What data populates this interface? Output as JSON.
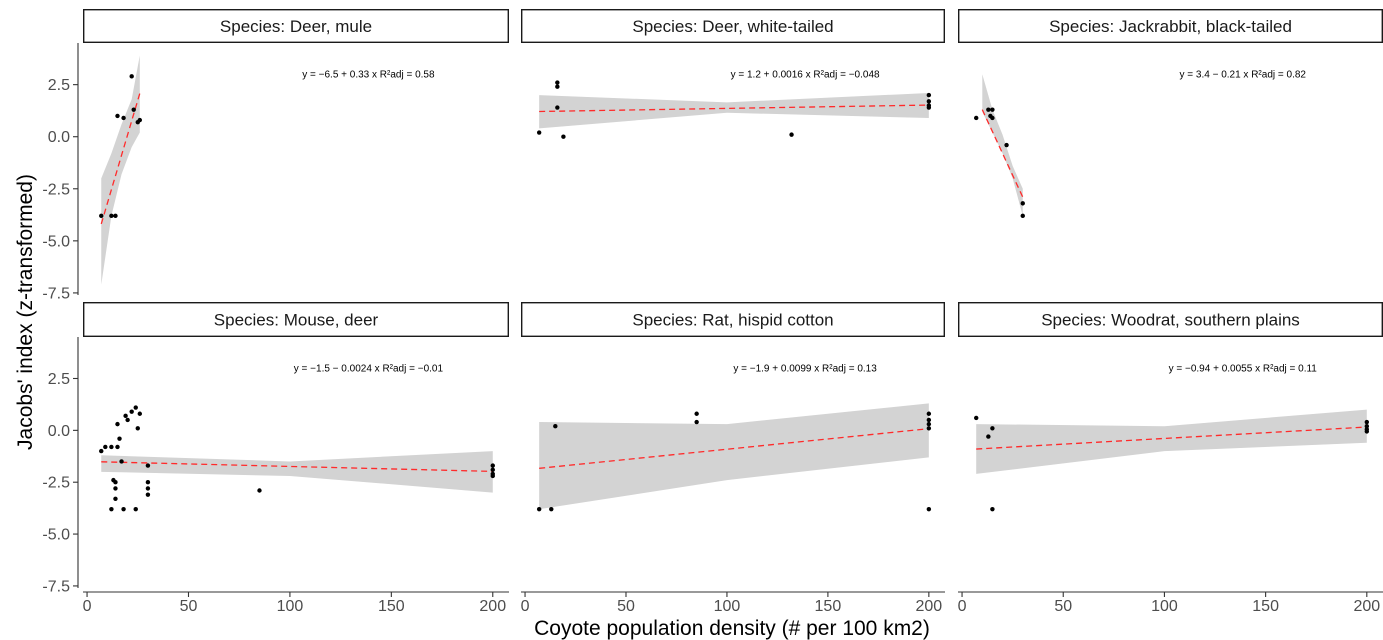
{
  "chart_data": {
    "type": "scatter",
    "xlabel": "Coyote population density (# per 100 km2)",
    "ylabel": "Jacobs' index (z-transformed)",
    "xlim": [
      -2,
      208
    ],
    "ylim": [
      -7.6,
      4.5
    ],
    "x_ticks": [
      0,
      50,
      100,
      150,
      200
    ],
    "x_tick_labels": [
      "0",
      "50",
      "100",
      "150",
      "200"
    ],
    "y_ticks": [
      2.5,
      0.0,
      -2.5,
      -5.0,
      -7.5
    ],
    "y_tick_labels": [
      "2.5",
      "0.0",
      "-2.5",
      "-5.0",
      "-7.5"
    ],
    "grid": false,
    "trend_color": "#ff2a2a",
    "band_color": "#d3d3d3",
    "point_color": "#000000",
    "panels": [
      {
        "strip": "Species: Deer, mule",
        "eq": "y = −6.5 + 0.33 x   R²adj = 0.58",
        "line": {
          "x_from": 7,
          "x_to": 26,
          "intercept": -6.5,
          "slope": 0.33
        },
        "band": {
          "x": [
            7,
            12,
            17,
            22,
            26
          ],
          "upper": [
            -2.0,
            -0.8,
            0.6,
            1.8,
            3.9
          ],
          "lower": [
            -7.1,
            -3.8,
            -1.8,
            -0.5,
            0.2
          ]
        },
        "points": [
          [
            7,
            -3.8
          ],
          [
            12,
            -3.8
          ],
          [
            14,
            -3.8
          ],
          [
            15,
            1.0
          ],
          [
            18,
            0.9
          ],
          [
            22,
            2.9
          ],
          [
            23,
            1.3
          ],
          [
            25,
            0.7
          ],
          [
            26,
            0.8
          ]
        ]
      },
      {
        "strip": "Species: Deer, white-tailed",
        "eq": "y = 1.2 + 0.0016 x   R²adj = −0.048",
        "line": {
          "x_from": 7,
          "x_to": 200,
          "intercept": 1.2,
          "slope": 0.0016
        },
        "band": {
          "x": [
            7,
            100,
            200
          ],
          "upper": [
            2.0,
            1.65,
            2.1
          ],
          "lower": [
            0.4,
            1.15,
            0.9
          ]
        },
        "points": [
          [
            7,
            0.2
          ],
          [
            16,
            2.6
          ],
          [
            16,
            2.4
          ],
          [
            16,
            1.4
          ],
          [
            19,
            0.0
          ],
          [
            132,
            0.1
          ],
          [
            200,
            2.0
          ],
          [
            200,
            1.7
          ],
          [
            200,
            1.5
          ],
          [
            200,
            1.4
          ]
        ]
      },
      {
        "strip": "Species: Jackrabbit, black-tailed",
        "eq": "y = 3.4 − 0.21 x   R²adj = 0.82",
        "line": {
          "x_from": 10,
          "x_to": 30,
          "intercept": 3.4,
          "slope": -0.21
        },
        "band": {
          "x": [
            10,
            15,
            20,
            25,
            30
          ],
          "upper": [
            3.0,
            1.3,
            0.1,
            -1.4,
            -2.5
          ],
          "lower": [
            1.2,
            0.2,
            -0.8,
            -2.0,
            -3.8
          ]
        },
        "points": [
          [
            7,
            0.9
          ],
          [
            13,
            1.3
          ],
          [
            14,
            1.0
          ],
          [
            15,
            0.9
          ],
          [
            15,
            1.3
          ],
          [
            22,
            -0.4
          ],
          [
            30,
            -3.2
          ],
          [
            30,
            -3.8
          ]
        ]
      },
      {
        "strip": "Species: Mouse, deer",
        "eq": "y = −1.5 − 0.0024 x   R²adj = −0.01",
        "line": {
          "x_from": 7,
          "x_to": 200,
          "intercept": -1.5,
          "slope": -0.0024
        },
        "band": {
          "x": [
            7,
            100,
            200
          ],
          "upper": [
            -1.2,
            -1.5,
            -1.0
          ],
          "lower": [
            -2.0,
            -2.2,
            -3.0
          ]
        },
        "points": [
          [
            7,
            -1.0
          ],
          [
            9,
            -0.8
          ],
          [
            12,
            -3.8
          ],
          [
            12,
            -0.8
          ],
          [
            13,
            -2.4
          ],
          [
            14,
            -2.5
          ],
          [
            14,
            -2.8
          ],
          [
            14,
            -3.3
          ],
          [
            15,
            0.3
          ],
          [
            15,
            -0.8
          ],
          [
            16,
            -0.4
          ],
          [
            17,
            -1.5
          ],
          [
            18,
            -3.8
          ],
          [
            19,
            0.7
          ],
          [
            20,
            0.5
          ],
          [
            22,
            0.9
          ],
          [
            24,
            -3.8
          ],
          [
            24,
            1.1
          ],
          [
            25,
            0.1
          ],
          [
            26,
            0.8
          ],
          [
            30,
            -1.7
          ],
          [
            30,
            -2.5
          ],
          [
            30,
            -2.8
          ],
          [
            30,
            -3.1
          ],
          [
            85,
            -2.9
          ],
          [
            200,
            -1.7
          ],
          [
            200,
            -1.9
          ],
          [
            200,
            -2.1
          ],
          [
            200,
            -2.2
          ]
        ]
      },
      {
        "strip": "Species: Rat, hispid cotton",
        "eq": "y = −1.9 + 0.0099 x   R²adj = 0.13",
        "line": {
          "x_from": 7,
          "x_to": 200,
          "intercept": -1.9,
          "slope": 0.0099
        },
        "band": {
          "x": [
            7,
            100,
            200
          ],
          "upper": [
            0.4,
            0.3,
            1.3
          ],
          "lower": [
            -3.8,
            -2.4,
            -1.3
          ]
        },
        "points": [
          [
            7,
            -3.8
          ],
          [
            13,
            -3.8
          ],
          [
            15,
            0.2
          ],
          [
            85,
            0.8
          ],
          [
            85,
            0.4
          ],
          [
            200,
            0.8
          ],
          [
            200,
            0.5
          ],
          [
            200,
            0.3
          ],
          [
            200,
            0.1
          ],
          [
            200,
            -3.8
          ]
        ]
      },
      {
        "strip": "Species: Woodrat, southern plains",
        "eq": "y = −0.94 + 0.0055 x   R²adj = 0.11",
        "line": {
          "x_from": 7,
          "x_to": 200,
          "intercept": -0.94,
          "slope": 0.0055
        },
        "band": {
          "x": [
            7,
            100,
            200
          ],
          "upper": [
            0.3,
            0.2,
            1.0
          ],
          "lower": [
            -2.1,
            -1.0,
            -0.6
          ]
        },
        "points": [
          [
            7,
            0.6
          ],
          [
            13,
            -0.3
          ],
          [
            15,
            0.1
          ],
          [
            15,
            -3.8
          ],
          [
            200,
            0.4
          ],
          [
            200,
            0.2
          ],
          [
            200,
            0.05
          ],
          [
            200,
            -0.05
          ]
        ]
      }
    ]
  }
}
